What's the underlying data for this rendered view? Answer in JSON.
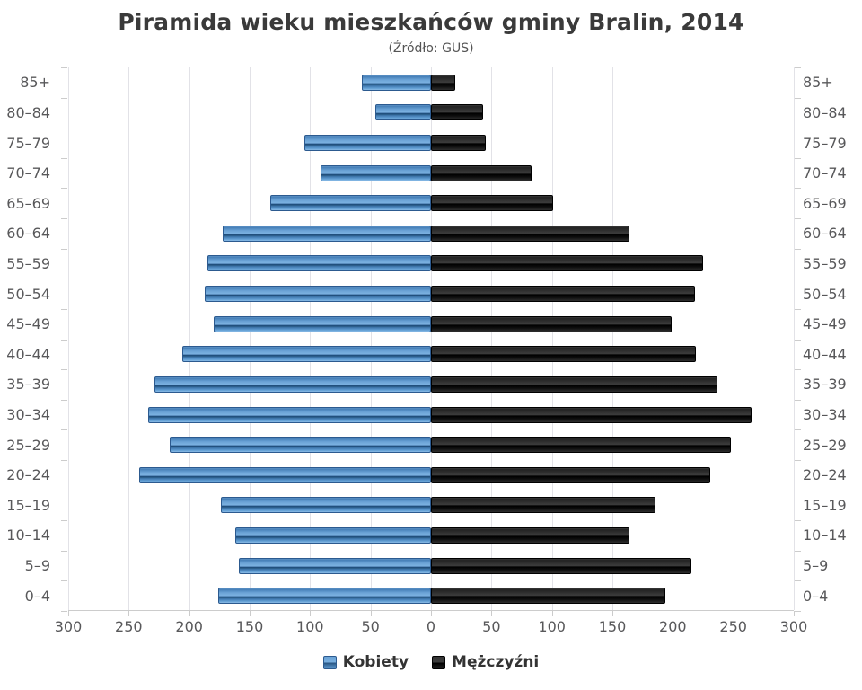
{
  "title": "Piramida wieku mieszkańców gminy Bralin, 2014",
  "subtitle": "(Źródło: GUS)",
  "legend": {
    "women_label": "Kobiety",
    "men_label": "Mężczyźni"
  },
  "colors": {
    "women_bar": "#4e8bc4",
    "women_bar_dark_band": "#1d4a7c",
    "men_bar": "#1a1a1a",
    "axis_text": "#58585a",
    "title_text": "#3a3a3a",
    "gridline": "#e2e2e7",
    "tick": "#cccccc",
    "background": "#ffffff"
  },
  "chart_data": {
    "type": "bar",
    "subtype": "population-pyramid",
    "title": "Piramida wieku mieszkańców gminy Bralin, 2014",
    "subtitle": "(Źródło: GUS)",
    "categories_top_to_bottom": [
      "85+",
      "80–84",
      "75–79",
      "70–74",
      "65–69",
      "60–64",
      "55–59",
      "50–54",
      "45–49",
      "40–44",
      "35–39",
      "30–34",
      "25–29",
      "20–24",
      "15–19",
      "10–14",
      "5–9",
      "0–4"
    ],
    "series": [
      {
        "name": "Kobiety",
        "side": "left",
        "color": "#4e8bc4",
        "values": [
          57,
          46,
          105,
          91,
          133,
          172,
          185,
          187,
          180,
          206,
          229,
          234,
          216,
          241,
          174,
          162,
          159,
          176
        ]
      },
      {
        "name": "Mężczyźni",
        "side": "right",
        "color": "#1a1a1a",
        "values": [
          20,
          43,
          45,
          83,
          101,
          164,
          225,
          218,
          199,
          219,
          237,
          265,
          248,
          231,
          186,
          164,
          215,
          194
        ]
      }
    ],
    "x_axis": {
      "max_each_side": 300,
      "tick_interval": 50,
      "tick_values": [
        -300,
        -250,
        -200,
        -150,
        -100,
        -50,
        0,
        50,
        100,
        150,
        200,
        250,
        300
      ],
      "tick_labels": [
        "300",
        "250",
        "200",
        "150",
        "100",
        "50",
        "0",
        "50",
        "100",
        "150",
        "200",
        "250",
        "300"
      ],
      "grid": true
    },
    "y_axis": {
      "labels_on_both_sides": true
    },
    "legend_position": "bottom"
  }
}
